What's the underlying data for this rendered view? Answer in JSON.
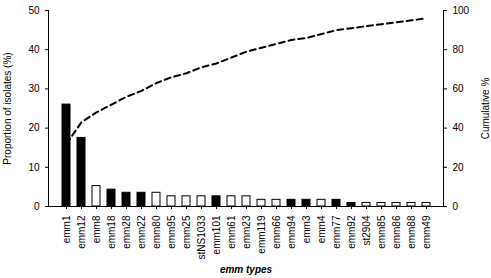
{
  "chart_data": {
    "type": "bar",
    "x_label": "emm types",
    "y_label": "Proportion of isolates (%)",
    "y2_label": "Cumulative %",
    "categories": [
      "emm1",
      "emm12",
      "emm8",
      "emm18",
      "emm28",
      "emm22",
      "emm80",
      "emm95",
      "emm25",
      "stNS1033",
      "emm101",
      "emm61",
      "emm23",
      "emm119",
      "emm66",
      "emm94",
      "emm3",
      "emm4",
      "emm77",
      "emm92",
      "st2904",
      "emm85",
      "emm86",
      "emm88",
      "emm49"
    ],
    "series": [
      {
        "type": "bar",
        "values": [
          26,
          17.5,
          5.2,
          4.3,
          3.5,
          3.5,
          3.5,
          2.6,
          2.6,
          2.6,
          2.6,
          2.6,
          2.6,
          1.7,
          1.7,
          1.7,
          1.7,
          1.7,
          1.7,
          0.9,
          0.9,
          0.9,
          0.9,
          0.9,
          0.9
        ],
        "colors": [
          "#000000",
          "#000000",
          "#ffffff",
          "#000000",
          "#000000",
          "#000000",
          "#ffffff",
          "#ffffff",
          "#ffffff",
          "#ffffff",
          "#000000",
          "#ffffff",
          "#ffffff",
          "#ffffff",
          "#ffffff",
          "#000000",
          "#000000",
          "#ffffff",
          "#000000",
          "#000000",
          "#ffffff",
          "#ffffff",
          "#ffffff",
          "#ffffff",
          "#ffffff"
        ]
      },
      {
        "type": "line",
        "axis": "y2",
        "color": "#000000",
        "line_style": "dashed",
        "values": [
          32,
          43,
          48,
          52,
          56,
          59,
          63,
          66,
          68,
          71,
          73,
          76,
          79,
          81,
          83,
          85,
          86,
          88,
          90,
          91,
          92,
          93,
          94,
          95,
          96
        ]
      }
    ],
    "ylim": [
      0,
      50
    ],
    "yticks": [
      0,
      10,
      20,
      30,
      40,
      50
    ],
    "y2lim": [
      0,
      100
    ],
    "y2ticks": [
      0,
      20,
      40,
      60,
      80,
      100
    ],
    "grid": false
  }
}
